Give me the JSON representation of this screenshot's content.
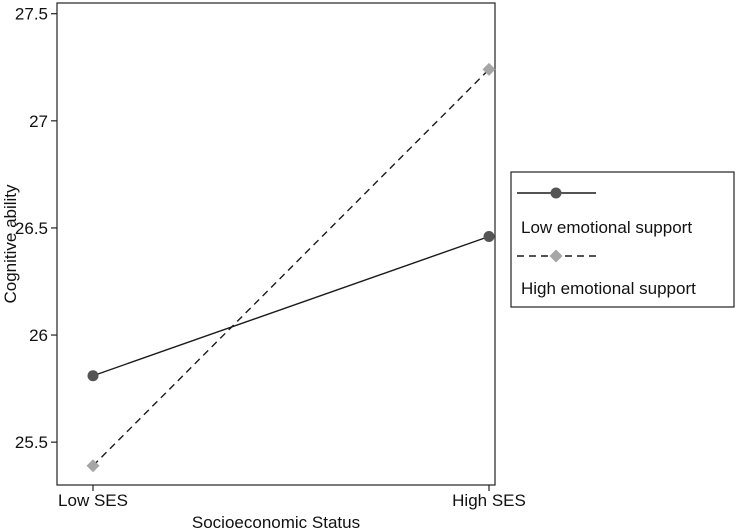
{
  "chart_data": {
    "type": "line",
    "title": "",
    "xlabel": "Socioeconomic Status",
    "ylabel": "Cognitive ability",
    "categories": [
      "Low SES",
      "High SES"
    ],
    "ylim": [
      25.3,
      27.55
    ],
    "yticks": [
      25.5,
      26,
      26.5,
      27,
      27.5
    ],
    "ytick_labels": [
      "25.5",
      "26",
      "26.5",
      "27",
      "27.5"
    ],
    "grid": false,
    "legend_position": "right",
    "series": [
      {
        "name": "Low emotional support",
        "values": [
          25.81,
          26.46
        ],
        "line_style": "solid",
        "marker": "circle",
        "color": "#555555"
      },
      {
        "name": "High emotional support",
        "values": [
          25.39,
          27.24
        ],
        "line_style": "dashed",
        "marker": "diamond",
        "color": "#a6a6a6"
      }
    ]
  }
}
